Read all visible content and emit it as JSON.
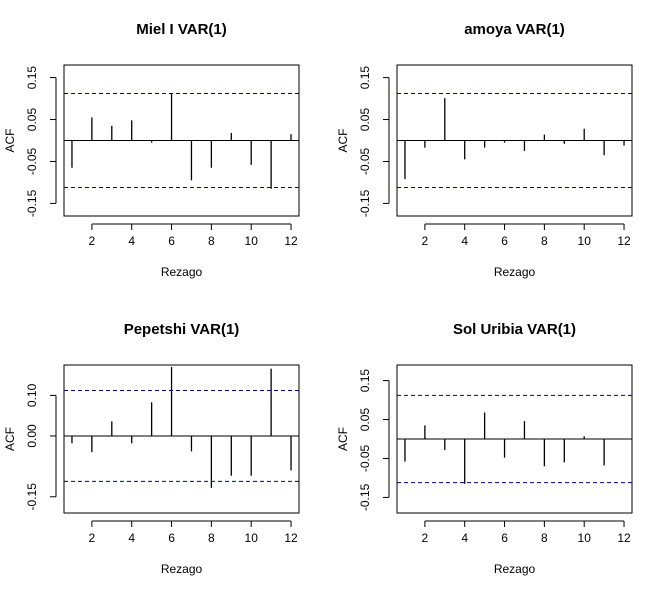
{
  "figure": {
    "background": "#ffffff"
  },
  "colors": {
    "bar": "#000000",
    "frame": "#000000",
    "conf_band": "#00008b",
    "zero_line": "#000000"
  },
  "chart_data": [
    {
      "type": "bar",
      "title": "Miel I VAR(1)",
      "xlabel": "Rezago",
      "ylabel": "ACF",
      "x": [
        1,
        2,
        3,
        4,
        5,
        6,
        7,
        8,
        9,
        10,
        11,
        12
      ],
      "values": [
        -0.065,
        0.055,
        0.035,
        0.048,
        -0.005,
        0.112,
        -0.095,
        -0.065,
        0.018,
        -0.058,
        -0.115,
        0.015
      ],
      "conf_band": [
        0.112,
        -0.112
      ],
      "xlim": [
        0.6,
        12.4
      ],
      "ylim": [
        -0.18,
        0.18
      ],
      "xticks": [
        2,
        4,
        6,
        8,
        10,
        12
      ],
      "xtick_labels": [
        "2",
        "4",
        "6",
        "8",
        "10",
        "12"
      ],
      "yticks": [
        -0.15,
        -0.05,
        0.05,
        0.15
      ],
      "ytick_labels": [
        "-0.15",
        "-0.05",
        "0.05",
        "0.15"
      ],
      "grid": false,
      "legend": "none"
    },
    {
      "type": "bar",
      "title": "amoya VAR(1)",
      "xlabel": "Rezago",
      "ylabel": "ACF",
      "x": [
        1,
        2,
        3,
        4,
        5,
        6,
        7,
        8,
        9,
        10,
        11,
        12
      ],
      "values": [
        -0.092,
        -0.017,
        0.101,
        -0.045,
        -0.017,
        -0.005,
        -0.025,
        0.014,
        -0.008,
        0.028,
        -0.035,
        -0.012
      ],
      "conf_band": [
        0.112,
        -0.112
      ],
      "xlim": [
        0.6,
        12.4
      ],
      "ylim": [
        -0.18,
        0.18
      ],
      "xticks": [
        2,
        4,
        6,
        8,
        10,
        12
      ],
      "xtick_labels": [
        "2",
        "4",
        "6",
        "8",
        "10",
        "12"
      ],
      "yticks": [
        -0.15,
        -0.05,
        0.05,
        0.15
      ],
      "ytick_labels": [
        "-0.15",
        "-0.05",
        "0.05",
        "0.15"
      ],
      "grid": false,
      "legend": "none"
    },
    {
      "type": "bar",
      "title": "Pepetshi VAR(1)",
      "xlabel": "Rezago",
      "ylabel": "ACF",
      "x": [
        1,
        2,
        3,
        4,
        5,
        6,
        7,
        8,
        9,
        10,
        11,
        12
      ],
      "values": [
        -0.018,
        -0.04,
        0.036,
        -0.018,
        0.083,
        0.17,
        -0.038,
        -0.128,
        -0.098,
        -0.098,
        0.166,
        -0.085
      ],
      "conf_band": [
        0.112,
        -0.112
      ],
      "xlim": [
        0.6,
        12.4
      ],
      "ylim": [
        -0.19,
        0.175
      ],
      "xticks": [
        2,
        4,
        6,
        8,
        10,
        12
      ],
      "xtick_labels": [
        "2",
        "4",
        "6",
        "8",
        "10",
        "12"
      ],
      "yticks": [
        -0.15,
        0.0,
        0.1
      ],
      "ytick_labels": [
        "-0.15",
        "0.00",
        "0.10"
      ],
      "grid": false,
      "legend": "none"
    },
    {
      "type": "bar",
      "title": "Sol Uribia VAR(1)",
      "xlabel": "Rezago",
      "ylabel": "ACF",
      "x": [
        1,
        2,
        3,
        4,
        5,
        6,
        7,
        8,
        9,
        10,
        11,
        12
      ],
      "values": [
        -0.058,
        0.035,
        -0.028,
        -0.115,
        0.068,
        -0.048,
        0.046,
        -0.07,
        -0.06,
        0.007,
        -0.068,
        0.0
      ],
      "conf_band": [
        0.112,
        -0.112
      ],
      "xlim": [
        0.6,
        12.4
      ],
      "ylim": [
        -0.19,
        0.19
      ],
      "xticks": [
        2,
        4,
        6,
        8,
        10,
        12
      ],
      "xtick_labels": [
        "2",
        "4",
        "6",
        "8",
        "10",
        "12"
      ],
      "yticks": [
        -0.15,
        -0.05,
        0.05,
        0.15
      ],
      "ytick_labels": [
        "-0.15",
        "-0.05",
        "0.05",
        "0.15"
      ],
      "grid": false,
      "legend": "none"
    }
  ]
}
